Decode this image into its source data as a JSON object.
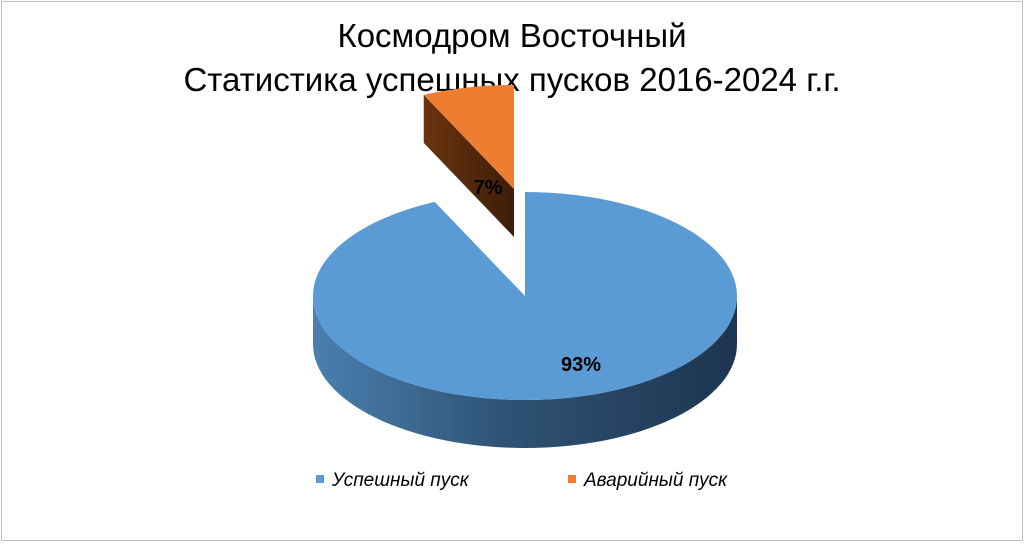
{
  "chart_data": {
    "type": "pie",
    "title": "Космодром Восточный",
    "subtitle": "Статистика успешных пусков 2016-2024 г.г.",
    "categories": [
      "Успешный пуск",
      "Аварийный пуск"
    ],
    "values": [
      93,
      7
    ],
    "value_labels": [
      "93%",
      "7%"
    ],
    "colors": [
      "#5b9bd5",
      "#ed7d31"
    ],
    "legend_position": "bottom",
    "style": "3d-exploded"
  }
}
